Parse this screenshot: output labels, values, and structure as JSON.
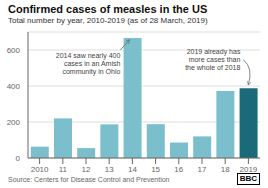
{
  "chart_data": {
    "type": "bar",
    "title": "Confirmed cases of measles in the US",
    "subtitle": "Total number by year, 2010-2019 (as of 28 March, 2019)",
    "source": "Source: Centers for Disease Control and Prevention",
    "logo": "BBC",
    "categories": [
      "2010",
      "11",
      "12",
      "13",
      "14",
      "15",
      "16",
      "17",
      "18",
      "2019"
    ],
    "values": [
      63,
      220,
      55,
      187,
      667,
      188,
      86,
      120,
      372,
      387
    ],
    "colors": [
      "#7bbfcc",
      "#7bbfcc",
      "#7bbfcc",
      "#7bbfcc",
      "#7bbfcc",
      "#7bbfcc",
      "#7bbfcc",
      "#7bbfcc",
      "#7bbfcc",
      "#1b6a7a"
    ],
    "ylim": [
      0,
      700
    ],
    "yticks": [
      0,
      200,
      400,
      600
    ],
    "grid": true,
    "annotations": [
      {
        "text": "2014 saw nearly 400\ncases in an Amish\ncommunity in Ohio",
        "category": "14",
        "value": 667
      },
      {
        "text": "2019 already has\nmore cases than\nthe whole of 2018",
        "category": "2019",
        "value": 390
      }
    ]
  }
}
